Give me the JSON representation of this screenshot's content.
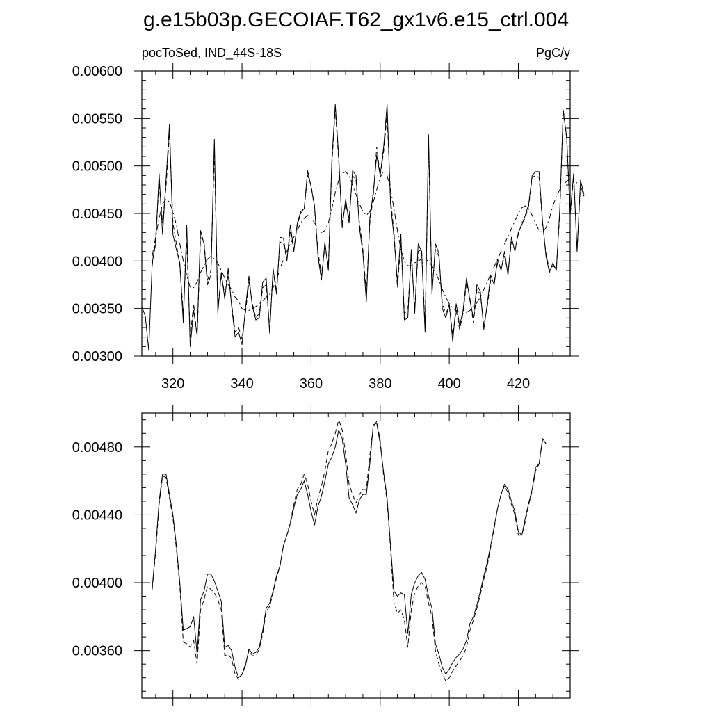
{
  "title": "g.e15b03p.GECOIAF.T62_gx1v6.e15_ctrl.004",
  "chart_data": [
    {
      "type": "line",
      "left_label": "pocToSed, IND_44S-18S",
      "right_label": "PgC/y",
      "xlim": [
        311,
        435
      ],
      "ylim": [
        0.003,
        0.006
      ],
      "x_ticks": [
        320,
        340,
        360,
        380,
        400,
        420
      ],
      "x_tick_labels": [
        "320",
        "340",
        "360",
        "380",
        "400",
        "420"
      ],
      "y_ticks": [
        0.003,
        0.0035,
        0.004,
        0.0045,
        0.005,
        0.0055,
        0.006
      ],
      "y_tick_labels": [
        "0.00300",
        "0.00350",
        "0.00400",
        "0.00450",
        "0.00500",
        "0.00550",
        "0.00600"
      ],
      "grid": false,
      "x_start": 311,
      "x_step": 1,
      "series": [
        {
          "style": "solid",
          "values": [
            0.00352,
            0.00342,
            0.00306,
            0.00398,
            0.00418,
            0.00492,
            0.00428,
            0.00485,
            0.00544,
            0.00428,
            0.00412,
            0.00398,
            0.00335,
            0.00438,
            0.0031,
            0.00348,
            0.00322,
            0.00432,
            0.00418,
            0.00375,
            0.00385,
            0.00528,
            0.00345,
            0.00388,
            0.0036,
            0.00392,
            0.00352,
            0.0032,
            0.00325,
            0.00312,
            0.0035,
            0.00384,
            0.00352,
            0.00338,
            0.0034,
            0.00378,
            0.00382,
            0.00324,
            0.00392,
            0.00365,
            0.00425,
            0.00424,
            0.004,
            0.00438,
            0.0041,
            0.0044,
            0.00452,
            0.00455,
            0.00495,
            0.00478,
            0.00458,
            0.00405,
            0.0038,
            0.0042,
            0.0039,
            0.00505,
            0.00565,
            0.0051,
            0.00435,
            0.00465,
            0.0044,
            0.00495,
            0.0049,
            0.00435,
            0.00408,
            0.00357,
            0.00445,
            0.00472,
            0.00511,
            0.0049,
            0.0052,
            0.00565,
            0.0046,
            0.00425,
            0.00378,
            0.00428,
            0.00338,
            0.0034,
            0.00412,
            0.00345,
            0.00418,
            0.0041,
            0.00325,
            0.00533,
            0.00365,
            0.00418,
            0.00408,
            0.0035,
            0.0034,
            0.00355,
            0.00315,
            0.00355,
            0.00332,
            0.00348,
            0.00382,
            0.00358,
            0.0034,
            0.00375,
            0.00368,
            0.00328,
            0.00355,
            0.00385,
            0.00375,
            0.00402,
            0.0039,
            0.0041,
            0.00385,
            0.00425,
            0.0041,
            0.0043,
            0.00438,
            0.00448,
            0.0046,
            0.0049,
            0.00494,
            0.00494,
            0.00442,
            0.00405,
            0.00388,
            0.00398,
            0.0039,
            0.00455,
            0.00558,
            0.0053,
            0.0045,
            0.00492,
            0.0041,
            0.00485,
            0.0047
          ]
        },
        {
          "style": "dashed",
          "values": [
            null,
            null,
            null,
            0.00395,
            0.00425,
            0.00482,
            0.0044,
            0.00478,
            0.00535,
            0.0044,
            0.00418,
            0.00395,
            0.00345,
            0.0042,
            0.0032,
            0.00355,
            0.0032,
            0.00425,
            0.0042,
            0.0038,
            0.0039,
            0.00515,
            0.0035,
            0.00385,
            0.00365,
            0.00385,
            0.00355,
            0.00325,
            0.0033,
            0.00318,
            0.00345,
            0.00378,
            0.00355,
            0.0034,
            0.00345,
            0.00372,
            0.00375,
            0.0033,
            0.00388,
            0.00368,
            0.0042,
            0.00418,
            0.00402,
            0.00432,
            0.00412,
            0.00438,
            0.0045,
            0.00455,
            0.0049,
            0.0048,
            0.00455,
            0.0041,
            0.00385,
            0.00415,
            0.00395,
            0.005,
            0.0056,
            0.00505,
            0.0044,
            0.0046,
            0.00445,
            0.0049,
            0.00485,
            0.0044,
            0.00412,
            0.00365,
            0.0044,
            0.00468,
            0.0052,
            0.0049,
            0.00515,
            0.00555,
            0.00465,
            0.0043,
            0.00372,
            0.0042,
            0.00345,
            0.00348,
            0.00405,
            0.0035,
            0.0041,
            0.00412,
            0.0033,
            0.0052,
            0.0037,
            0.00412,
            0.00405,
            0.00355,
            0.00345,
            0.00352,
            0.00322,
            0.00348,
            0.00328,
            0.00345,
            0.00378,
            0.0036,
            0.00335,
            0.0037,
            0.00365,
            0.00332,
            0.00352,
            0.0038,
            0.00378,
            0.00398,
            0.00392,
            0.00405,
            0.00388,
            0.0042,
            0.00412,
            0.00428,
            0.0044,
            0.00445,
            0.00458,
            0.00488,
            0.0049,
            0.00488,
            0.0044,
            0.00408,
            0.0039,
            0.00395,
            0.00392,
            0.0045,
            0.0056,
            0.00528,
            0.00448,
            0.00488,
            0.00412,
            0.0048,
            0.00468
          ]
        },
        {
          "style": "dashdot",
          "values": [
            null,
            null,
            null,
            0.00405,
            0.00425,
            0.00445,
            0.0046,
            0.00465,
            0.00462,
            0.00452,
            0.00438,
            0.00418,
            0.004,
            0.00385,
            0.00372,
            0.00372,
            0.00378,
            0.00388,
            0.00395,
            0.00402,
            0.00405,
            0.00402,
            0.00398,
            0.0039,
            0.00382,
            0.00375,
            0.0037,
            0.00362,
            0.00358,
            0.0035,
            0.00348,
            0.00348,
            0.0035,
            0.00352,
            0.00355,
            0.00358,
            0.00362,
            0.00365,
            0.00372,
            0.0038,
            0.00392,
            0.00402,
            0.0041,
            0.00418,
            0.00425,
            0.00432,
            0.0044,
            0.00445,
            0.00448,
            0.00446,
            0.0044,
            0.00434,
            0.0043,
            0.00432,
            0.0044,
            0.00455,
            0.00472,
            0.00485,
            0.00492,
            0.00494,
            0.0049,
            0.0048,
            0.0047,
            0.0046,
            0.00452,
            0.00448,
            0.00452,
            0.00462,
            0.00475,
            0.00488,
            0.00495,
            0.0049,
            0.00475,
            0.00455,
            0.00432,
            0.00412,
            0.004,
            0.00395,
            0.00395,
            0.00398,
            0.004,
            0.00402,
            0.00402,
            0.004,
            0.00395,
            0.00388,
            0.0038,
            0.0037,
            0.00362,
            0.00355,
            0.0035,
            0.00348,
            0.00346,
            0.00345,
            0.00346,
            0.00348,
            0.00352,
            0.00356,
            0.00362,
            0.0037,
            0.00378,
            0.00386,
            0.00394,
            0.00402,
            0.0041,
            0.00418,
            0.00426,
            0.00434,
            0.00442,
            0.0045,
            0.00456,
            0.00458,
            0.00455,
            0.00448,
            0.0044,
            0.00432,
            0.0043,
            0.00435,
            0.00445,
            0.00458,
            0.00468,
            0.00475,
            0.0048,
            0.00484,
            0.00486,
            0.00485,
            0.00482
          ]
        }
      ]
    },
    {
      "type": "line",
      "xlim": [
        311,
        435
      ],
      "ylim": [
        0.00332,
        0.005
      ],
      "y_ticks": [
        0.0036,
        0.004,
        0.0044,
        0.0048
      ],
      "y_tick_labels": [
        "0.00360",
        "0.00400",
        "0.00440",
        "0.00480"
      ],
      "grid": false,
      "x_start": 311,
      "x_step": 1,
      "series": [
        {
          "style": "solid",
          "values": [
            null,
            null,
            null,
            0.00397,
            0.0042,
            0.00448,
            0.00464,
            0.00464,
            0.00452,
            0.0044,
            0.00422,
            0.004,
            0.00372,
            0.00373,
            0.00374,
            0.0038,
            0.00358,
            0.0039,
            0.00395,
            0.00405,
            0.00405,
            0.00401,
            0.00395,
            0.00389,
            0.00362,
            0.00363,
            0.0036,
            0.0035,
            0.00344,
            0.00346,
            0.00351,
            0.00361,
            0.00358,
            0.00359,
            0.00362,
            0.00372,
            0.00385,
            0.00388,
            0.00395,
            0.00404,
            0.0041,
            0.00422,
            0.00428,
            0.00435,
            0.00444,
            0.00452,
            0.00455,
            0.0046,
            0.00452,
            0.00442,
            0.00434,
            0.00445,
            0.00451,
            0.0046,
            0.0047,
            0.00474,
            0.0048,
            0.0049,
            0.00485,
            0.0047,
            0.0045,
            0.00446,
            0.00441,
            0.00449,
            0.00452,
            0.00452,
            0.0047,
            0.00493,
            0.00494,
            0.00482,
            0.00465,
            0.0045,
            0.00422,
            0.00395,
            0.00392,
            0.00394,
            0.00393,
            0.0037,
            0.00393,
            0.004,
            0.00404,
            0.00406,
            0.00402,
            0.00392,
            0.00385,
            0.00364,
            0.00358,
            0.0035,
            0.00346,
            0.00349,
            0.00353,
            0.00356,
            0.00358,
            0.00361,
            0.00366,
            0.00376,
            0.0038,
            0.00387,
            0.00395,
            0.00404,
            0.00412,
            0.00422,
            0.00433,
            0.00444,
            0.00452,
            0.00458,
            0.00455,
            0.00448,
            0.00442,
            0.0043,
            0.00428,
            0.00438,
            0.00447,
            0.00455,
            0.00468,
            0.0047,
            0.00485,
            0.00482
          ]
        },
        {
          "style": "dashed",
          "values": [
            null,
            null,
            null,
            0.00396,
            0.00418,
            0.00446,
            0.00463,
            0.00462,
            0.0045,
            0.00438,
            0.0042,
            0.00398,
            0.00365,
            0.00364,
            0.00362,
            0.00366,
            0.00352,
            0.00384,
            0.0039,
            0.00398,
            0.00396,
            0.00394,
            0.0039,
            0.00384,
            0.00357,
            0.00358,
            0.00355,
            0.00346,
            0.00343,
            0.00346,
            0.00352,
            0.0036,
            0.00357,
            0.00357,
            0.00361,
            0.0037,
            0.00383,
            0.00386,
            0.00394,
            0.00403,
            0.0041,
            0.00422,
            0.00428,
            0.00436,
            0.00446,
            0.00455,
            0.00458,
            0.00464,
            0.00458,
            0.00448,
            0.0044,
            0.0045,
            0.00457,
            0.00466,
            0.00478,
            0.00482,
            0.00488,
            0.00496,
            0.0049,
            0.00476,
            0.00458,
            0.00452,
            0.00447,
            0.00452,
            0.00455,
            0.00455,
            0.00475,
            0.00492,
            0.00495,
            0.00484,
            0.00463,
            0.00448,
            0.0042,
            0.00388,
            0.00382,
            0.00384,
            0.00378,
            0.00362,
            0.00384,
            0.00394,
            0.00398,
            0.004,
            0.00398,
            0.00388,
            0.0038,
            0.0036,
            0.00352,
            0.00346,
            0.00342,
            0.00344,
            0.00348,
            0.00351,
            0.00354,
            0.00357,
            0.00362,
            0.00372,
            0.00378,
            0.00385,
            0.00393,
            0.00402,
            0.0041,
            0.00421,
            0.00432,
            0.00444,
            0.00452,
            0.00457,
            0.00453,
            0.00446,
            0.0044,
            0.00428,
            0.00428,
            0.00436,
            0.00446,
            0.00454,
            0.00466,
            0.0047,
            0.00484,
            0.00482
          ]
        }
      ]
    }
  ]
}
